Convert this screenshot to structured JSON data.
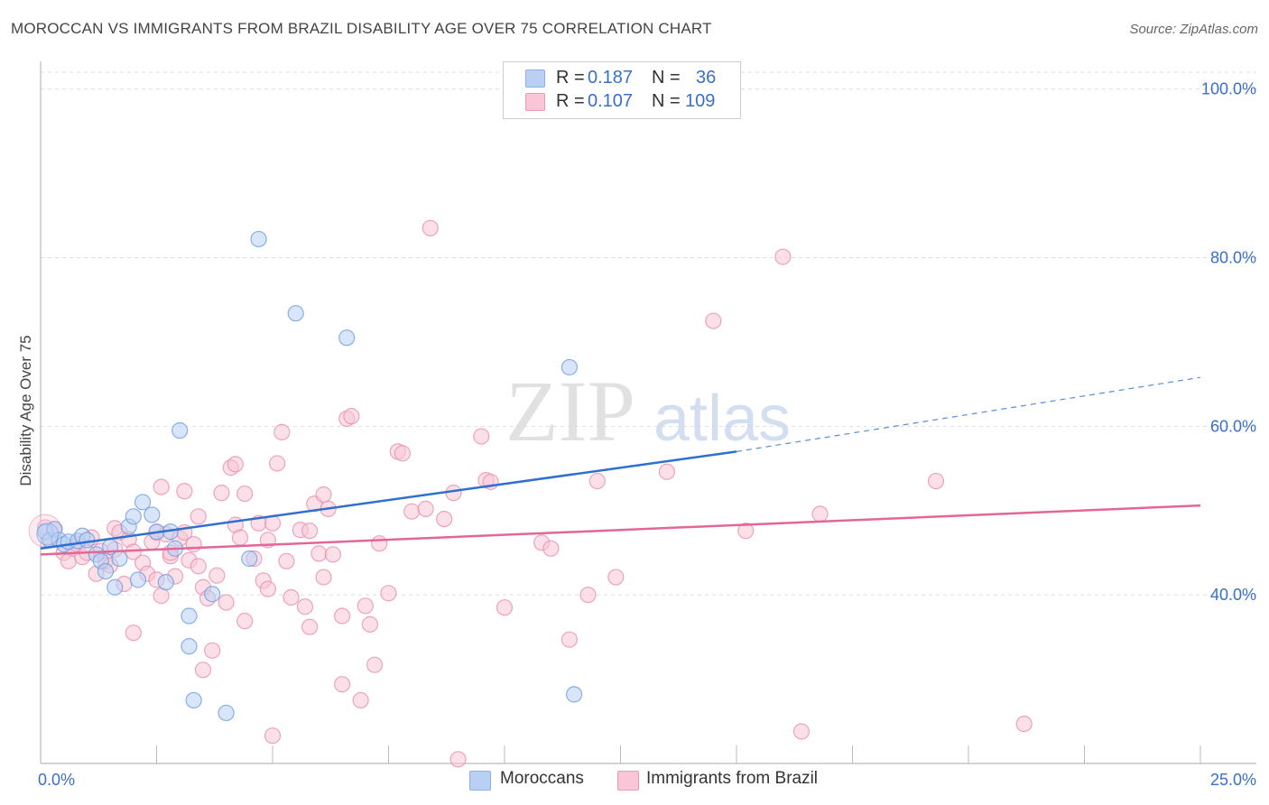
{
  "title": "MOROCCAN VS IMMIGRANTS FROM BRAZIL DISABILITY AGE OVER 75 CORRELATION CHART",
  "source": "Source: ZipAtlas.com",
  "watermark": {
    "zip": "ZIP",
    "atlas": "atlas"
  },
  "legend": {
    "rows": [
      {
        "r_label": "R =",
        "r_value": "0.187",
        "n_label": "N =",
        "n_value": "36"
      },
      {
        "r_label": "R =",
        "r_value": "0.107",
        "n_label": "N =",
        "n_value": "109"
      }
    ]
  },
  "bottom_legend": [
    "Moroccans",
    "Immigrants from Brazil"
  ],
  "colors": {
    "blue_fill": "#b9d0f4",
    "blue_stroke": "#6f9ee0",
    "blue_line": "#2e6fd0",
    "pink_fill": "#f8c6d6",
    "pink_stroke": "#ea8fb0",
    "pink_line": "#e06796",
    "tick_text": "#3a6fc8",
    "grid": "#dddddd"
  },
  "chart_data": {
    "type": "scatter",
    "title": "MOROCCAN VS IMMIGRANTS FROM BRAZIL DISABILITY AGE OVER 75 CORRELATION CHART",
    "xlabel": "",
    "ylabel": "Disability Age Over 75",
    "xlim": [
      0,
      25
    ],
    "ylim": [
      20,
      102
    ],
    "x_tick_labels": [
      {
        "value": 0,
        "label": "0.0%"
      },
      {
        "value": 25,
        "label": "25.0%"
      }
    ],
    "y_tick_labels": [
      {
        "value": 40,
        "label": "40.0%"
      },
      {
        "value": 60,
        "label": "60.0%"
      },
      {
        "value": 80,
        "label": "80.0%"
      },
      {
        "value": 100,
        "label": "100.0%"
      }
    ],
    "x_minor_ticks": [
      2.5,
      5,
      7.5,
      10,
      12.5,
      15,
      17.5,
      20,
      22.5,
      25
    ],
    "series": [
      {
        "name": "Moroccans",
        "r": 0.187,
        "n": 36,
        "trend": {
          "x0": 0,
          "y0": 45.5,
          "x1": 15,
          "y1": 57.0,
          "dash_to_x": 25,
          "dash_to_y": 65.8
        },
        "points": [
          [
            0.1,
            47.5
          ],
          [
            0.2,
            46.5
          ],
          [
            0.3,
            47.8
          ],
          [
            0.4,
            46.5
          ],
          [
            0.5,
            46.0
          ],
          [
            0.6,
            46.3
          ],
          [
            0.8,
            46.4
          ],
          [
            0.9,
            47.0
          ],
          [
            1.0,
            46.5
          ],
          [
            1.2,
            44.8
          ],
          [
            1.3,
            44.0
          ],
          [
            1.4,
            42.8
          ],
          [
            1.5,
            45.7
          ],
          [
            1.6,
            40.9
          ],
          [
            1.7,
            44.3
          ],
          [
            1.9,
            48.1
          ],
          [
            2.0,
            49.3
          ],
          [
            2.1,
            41.8
          ],
          [
            2.2,
            51.0
          ],
          [
            2.4,
            49.5
          ],
          [
            2.5,
            47.5
          ],
          [
            2.7,
            41.5
          ],
          [
            2.8,
            47.5
          ],
          [
            2.9,
            45.5
          ],
          [
            3.0,
            59.5
          ],
          [
            3.2,
            37.5
          ],
          [
            3.2,
            33.9
          ],
          [
            3.3,
            27.5
          ],
          [
            3.7,
            40.1
          ],
          [
            4.0,
            26.0
          ],
          [
            4.5,
            44.3
          ],
          [
            4.7,
            82.2
          ],
          [
            5.5,
            73.4
          ],
          [
            6.6,
            70.5
          ],
          [
            11.4,
            67.0
          ],
          [
            11.5,
            28.2
          ]
        ]
      },
      {
        "name": "Immigrants from Brazil",
        "r": 0.107,
        "n": 109,
        "trend": {
          "x0": 0,
          "y0": 44.8,
          "x1": 25,
          "y1": 50.6
        },
        "points": [
          [
            0.1,
            48.0
          ],
          [
            0.2,
            46.5
          ],
          [
            0.3,
            47.8
          ],
          [
            0.5,
            45.0
          ],
          [
            0.6,
            44.0
          ],
          [
            0.7,
            45.5
          ],
          [
            0.8,
            46.0
          ],
          [
            0.9,
            44.5
          ],
          [
            1.0,
            45.0
          ],
          [
            1.1,
            46.8
          ],
          [
            1.2,
            42.5
          ],
          [
            1.3,
            45.2
          ],
          [
            1.4,
            44.0
          ],
          [
            1.5,
            43.5
          ],
          [
            1.6,
            47.9
          ],
          [
            1.7,
            47.4
          ],
          [
            1.8,
            41.3
          ],
          [
            1.9,
            46.6
          ],
          [
            2.0,
            45.1
          ],
          [
            2.0,
            35.5
          ],
          [
            2.2,
            43.8
          ],
          [
            2.3,
            42.5
          ],
          [
            2.4,
            46.3
          ],
          [
            2.5,
            47.4
          ],
          [
            2.5,
            41.8
          ],
          [
            2.6,
            39.9
          ],
          [
            2.6,
            52.8
          ],
          [
            2.7,
            47.2
          ],
          [
            2.8,
            44.6
          ],
          [
            2.9,
            42.2
          ],
          [
            3.0,
            46.7
          ],
          [
            3.1,
            52.3
          ],
          [
            3.1,
            47.4
          ],
          [
            3.2,
            44.1
          ],
          [
            3.4,
            49.3
          ],
          [
            3.4,
            43.4
          ],
          [
            3.5,
            40.9
          ],
          [
            3.5,
            31.1
          ],
          [
            3.6,
            39.6
          ],
          [
            3.7,
            33.4
          ],
          [
            3.8,
            42.3
          ],
          [
            3.9,
            52.1
          ],
          [
            4.0,
            39.1
          ],
          [
            4.1,
            55.1
          ],
          [
            4.2,
            48.3
          ],
          [
            4.2,
            55.5
          ],
          [
            4.3,
            46.8
          ],
          [
            4.4,
            36.9
          ],
          [
            4.4,
            52.0
          ],
          [
            4.6,
            44.3
          ],
          [
            4.7,
            48.5
          ],
          [
            4.8,
            41.7
          ],
          [
            4.9,
            40.7
          ],
          [
            5.0,
            23.3
          ],
          [
            5.0,
            48.5
          ],
          [
            5.1,
            55.6
          ],
          [
            5.2,
            59.3
          ],
          [
            5.3,
            44.0
          ],
          [
            5.4,
            39.7
          ],
          [
            5.6,
            47.7
          ],
          [
            5.7,
            38.6
          ],
          [
            5.8,
            36.2
          ],
          [
            5.8,
            47.6
          ],
          [
            5.9,
            50.8
          ],
          [
            6.0,
            44.9
          ],
          [
            6.1,
            42.1
          ],
          [
            6.1,
            51.9
          ],
          [
            6.2,
            50.2
          ],
          [
            6.3,
            44.8
          ],
          [
            6.5,
            29.4
          ],
          [
            6.5,
            37.5
          ],
          [
            6.6,
            60.9
          ],
          [
            6.7,
            61.2
          ],
          [
            6.9,
            27.5
          ],
          [
            7.0,
            38.7
          ],
          [
            7.1,
            36.5
          ],
          [
            7.2,
            31.7
          ],
          [
            7.3,
            46.1
          ],
          [
            7.5,
            40.2
          ],
          [
            7.7,
            57.0
          ],
          [
            7.8,
            56.8
          ],
          [
            8.0,
            49.9
          ],
          [
            8.3,
            50.2
          ],
          [
            8.4,
            83.5
          ],
          [
            8.7,
            49.0
          ],
          [
            8.9,
            52.1
          ],
          [
            9.0,
            20.5
          ],
          [
            9.5,
            58.8
          ],
          [
            9.6,
            53.6
          ],
          [
            9.7,
            53.4
          ],
          [
            10.0,
            38.5
          ],
          [
            10.8,
            46.2
          ],
          [
            11.0,
            45.5
          ],
          [
            11.4,
            34.7
          ],
          [
            11.8,
            40.0
          ],
          [
            12.0,
            53.5
          ],
          [
            12.4,
            42.1
          ],
          [
            13.5,
            54.6
          ],
          [
            14.5,
            72.5
          ],
          [
            15.2,
            47.6
          ],
          [
            16.0,
            80.1
          ],
          [
            16.4,
            23.8
          ],
          [
            16.8,
            49.6
          ],
          [
            19.3,
            53.5
          ],
          [
            21.2,
            24.7
          ],
          [
            2.8,
            45.0
          ],
          [
            1.6,
            45.4
          ],
          [
            3.3,
            46.0
          ],
          [
            4.9,
            46.5
          ]
        ]
      }
    ]
  }
}
